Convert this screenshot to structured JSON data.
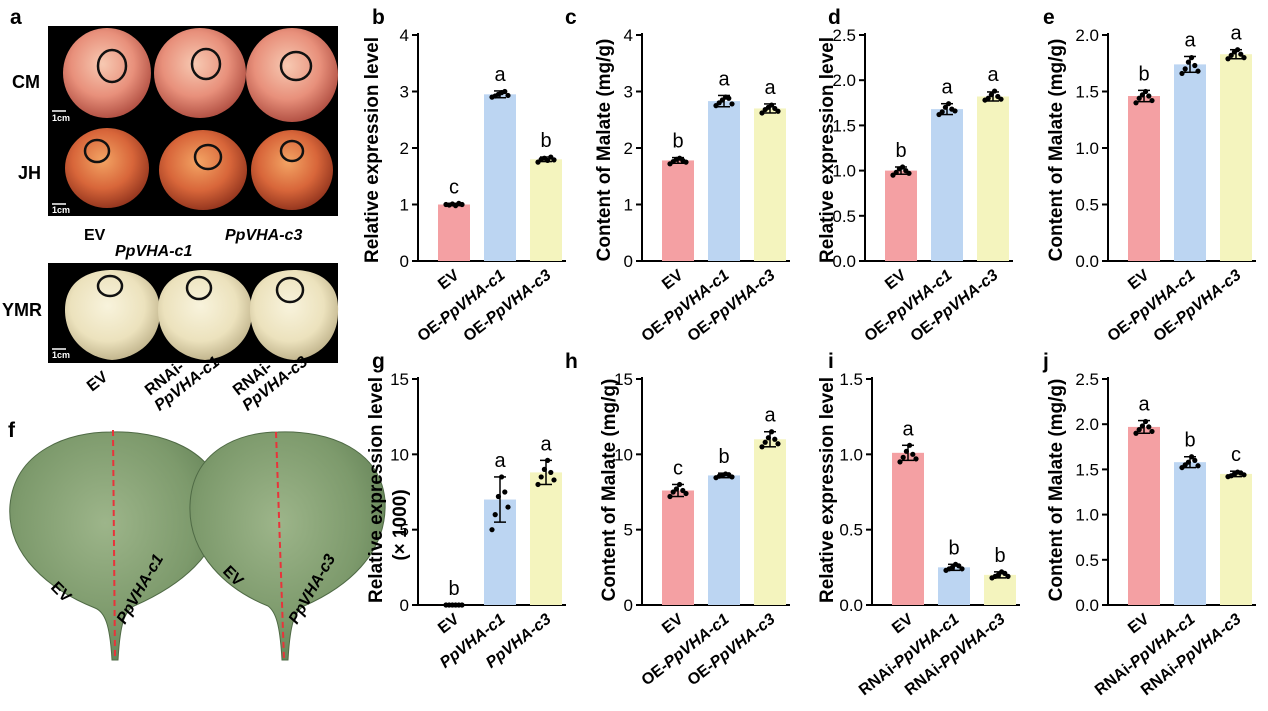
{
  "photos": {
    "panel_a": {
      "label": "a",
      "rows": [
        "CM",
        "JH",
        "YMR"
      ],
      "scale": "1cm",
      "top_categories": [
        {
          "text": "EV",
          "italic": false
        },
        {
          "text": "PpVHA-c1",
          "italic": true
        },
        {
          "text": "PpVHA-c3",
          "italic": true
        }
      ],
      "bottom_categories": [
        {
          "line1": "",
          "line2": "EV"
        },
        {
          "line1": "RNAi-",
          "line2": "PpVHA-c1"
        },
        {
          "line1": "RNAi-",
          "line2": "PpVHA-c3"
        }
      ]
    },
    "panel_f": {
      "label": "f",
      "leaves": [
        {
          "left": "EV",
          "right": "PpVHA-c1"
        },
        {
          "left": "EV",
          "right": "PpVHA-c3"
        }
      ]
    }
  },
  "chart_data": [
    {
      "panel": "b",
      "type": "bar",
      "ylabel": "Relative expression level",
      "ylabel2": "",
      "ylim": [
        0,
        4
      ],
      "yticks": [
        0,
        1,
        2,
        3,
        4
      ],
      "categories": [
        {
          "prefix": "",
          "gene": "",
          "text": "EV"
        },
        {
          "prefix": "OE-",
          "gene": "PpVHA-c1",
          "text": "OE-PpVHA-c1"
        },
        {
          "prefix": "OE-",
          "gene": "PpVHA-c3",
          "text": "OE-PpVHA-c3"
        }
      ],
      "values": [
        1.0,
        2.95,
        1.8
      ],
      "errors": [
        0.02,
        0.06,
        0.04
      ],
      "letters": [
        "c",
        "a",
        "b"
      ],
      "points": [
        [
          1.0,
          0.99,
          1.01,
          0.98,
          1.02,
          1.0
        ],
        [
          2.9,
          2.92,
          2.95,
          2.98,
          3.0,
          2.93
        ],
        [
          1.75,
          1.8,
          1.82,
          1.78,
          1.84,
          1.79
        ]
      ]
    },
    {
      "panel": "c",
      "type": "bar",
      "ylabel": "Content of Malate (mg/g)",
      "ylabel2": "",
      "ylim": [
        0,
        4
      ],
      "yticks": [
        0,
        1,
        2,
        3,
        4
      ],
      "categories": [
        {
          "prefix": "",
          "gene": "",
          "text": "EV"
        },
        {
          "prefix": "OE-",
          "gene": "PpVHA-c1",
          "text": "OE-PpVHA-c1"
        },
        {
          "prefix": "OE-",
          "gene": "PpVHA-c3",
          "text": "OE-PpVHA-c3"
        }
      ],
      "values": [
        1.78,
        2.83,
        2.7
      ],
      "errors": [
        0.05,
        0.1,
        0.08
      ],
      "letters": [
        "b",
        "a",
        "a"
      ],
      "points": [
        [
          1.72,
          1.76,
          1.8,
          1.82,
          1.78,
          1.75
        ],
        [
          2.75,
          2.8,
          2.85,
          2.9,
          2.88,
          2.78
        ],
        [
          2.62,
          2.68,
          2.72,
          2.76,
          2.7,
          2.65
        ]
      ]
    },
    {
      "panel": "d",
      "type": "bar",
      "ylabel": "Relative expression level",
      "ylabel2": "",
      "ylim": [
        0,
        2.5
      ],
      "yticks": [
        0.0,
        0.5,
        1.0,
        1.5,
        2.0,
        2.5
      ],
      "categories": [
        {
          "prefix": "",
          "gene": "",
          "text": "EV"
        },
        {
          "prefix": "OE-",
          "gene": "PpVHA-c1",
          "text": "OE-PpVHA-c1"
        },
        {
          "prefix": "OE-",
          "gene": "PpVHA-c3",
          "text": "OE-PpVHA-c3"
        }
      ],
      "values": [
        1.0,
        1.68,
        1.82
      ],
      "errors": [
        0.04,
        0.06,
        0.05
      ],
      "letters": [
        "b",
        "a",
        "a"
      ],
      "points": [
        [
          0.95,
          0.98,
          1.02,
          1.04,
          1.0,
          0.97
        ],
        [
          1.62,
          1.65,
          1.7,
          1.74,
          1.68,
          1.66
        ],
        [
          1.78,
          1.8,
          1.84,
          1.88,
          1.82,
          1.79
        ]
      ]
    },
    {
      "panel": "e",
      "type": "bar",
      "ylabel": "Content of Malate (mg/g)",
      "ylabel2": "",
      "ylim": [
        0,
        2.0
      ],
      "yticks": [
        0.0,
        0.5,
        1.0,
        1.5,
        2.0
      ],
      "categories": [
        {
          "prefix": "",
          "gene": "",
          "text": "EV"
        },
        {
          "prefix": "OE-",
          "gene": "PpVHA-c1",
          "text": "OE-PpVHA-c1"
        },
        {
          "prefix": "OE-",
          "gene": "PpVHA-c3",
          "text": "OE-PpVHA-c3"
        }
      ],
      "values": [
        1.46,
        1.74,
        1.83
      ],
      "errors": [
        0.05,
        0.07,
        0.04
      ],
      "letters": [
        "b",
        "a",
        "a"
      ],
      "points": [
        [
          1.4,
          1.44,
          1.47,
          1.5,
          1.46,
          1.42
        ],
        [
          1.66,
          1.7,
          1.76,
          1.8,
          1.73,
          1.68
        ],
        [
          1.79,
          1.82,
          1.85,
          1.87,
          1.83,
          1.8
        ]
      ]
    },
    {
      "panel": "g",
      "type": "bar",
      "ylabel": "Relative expression level",
      "ylabel2": "(× 1000)",
      "ylim": [
        0,
        15
      ],
      "yticks": [
        0,
        5,
        10,
        15
      ],
      "categories": [
        {
          "prefix": "",
          "gene": "",
          "text": "EV"
        },
        {
          "prefix": "",
          "gene": "PpVHA-c1",
          "text": "PpVHA-c1"
        },
        {
          "prefix": "",
          "gene": "PpVHA-c3",
          "text": "PpVHA-c3"
        }
      ],
      "values": [
        0.001,
        7.0,
        8.8
      ],
      "errors": [
        0.0,
        1.5,
        0.8
      ],
      "letters": [
        "b",
        "a",
        "a"
      ],
      "points": [
        [
          0,
          0,
          0,
          0,
          0,
          0
        ],
        [
          5.0,
          6.0,
          7.2,
          8.5,
          7.5,
          6.5
        ],
        [
          8.0,
          8.5,
          9.0,
          9.6,
          8.8,
          8.3
        ]
      ]
    },
    {
      "panel": "h",
      "type": "bar",
      "ylabel": "Content of Malate (mg/g)",
      "ylabel2": "",
      "ylim": [
        0,
        15
      ],
      "yticks": [
        0,
        5,
        10,
        15
      ],
      "categories": [
        {
          "prefix": "",
          "gene": "",
          "text": "EV"
        },
        {
          "prefix": "OE-",
          "gene": "PpVHA-c1",
          "text": "OE-PpVHA-c1"
        },
        {
          "prefix": "OE-",
          "gene": "PpVHA-c3",
          "text": "OE-PpVHA-c3"
        }
      ],
      "values": [
        7.6,
        8.6,
        11.0
      ],
      "errors": [
        0.4,
        0.15,
        0.5
      ],
      "letters": [
        "c",
        "b",
        "a"
      ],
      "points": [
        [
          7.2,
          7.5,
          7.7,
          8.0,
          7.6,
          7.4
        ],
        [
          8.45,
          8.55,
          8.6,
          8.7,
          8.65,
          8.5
        ],
        [
          10.5,
          10.8,
          11.1,
          11.5,
          11.0,
          10.7
        ]
      ]
    },
    {
      "panel": "i",
      "type": "bar",
      "ylabel": "Relative expression level",
      "ylabel2": "",
      "ylim": [
        0,
        1.5
      ],
      "yticks": [
        0.0,
        0.5,
        1.0,
        1.5
      ],
      "categories": [
        {
          "prefix": "",
          "gene": "",
          "text": "EV"
        },
        {
          "prefix": "RNAi-",
          "gene": "PpVHA-c1",
          "text": "RNAi-PpVHA-c1"
        },
        {
          "prefix": "RNAi-",
          "gene": "PpVHA-c3",
          "text": "RNAi-PpVHA-c3"
        }
      ],
      "values": [
        1.01,
        0.25,
        0.2
      ],
      "errors": [
        0.05,
        0.02,
        0.02
      ],
      "letters": [
        "a",
        "b",
        "b"
      ],
      "points": [
        [
          0.95,
          0.98,
          1.02,
          1.06,
          1.0,
          0.97
        ],
        [
          0.23,
          0.24,
          0.25,
          0.27,
          0.26,
          0.24
        ],
        [
          0.18,
          0.19,
          0.2,
          0.22,
          0.21,
          0.19
        ]
      ]
    },
    {
      "panel": "j",
      "type": "bar",
      "ylabel": "Content of Malate (mg/g)",
      "ylabel2": "",
      "ylim": [
        0,
        2.5
      ],
      "yticks": [
        0.0,
        0.5,
        1.0,
        1.5,
        2.0,
        2.5
      ],
      "categories": [
        {
          "prefix": "",
          "gene": "",
          "text": "EV"
        },
        {
          "prefix": "RNAi-",
          "gene": "PpVHA-c1",
          "text": "RNAi-PpVHA-c1"
        },
        {
          "prefix": "RNAi-",
          "gene": "PpVHA-c3",
          "text": "RNAi-PpVHA-c3"
        }
      ],
      "values": [
        1.97,
        1.58,
        1.45
      ],
      "errors": [
        0.07,
        0.06,
        0.03
      ],
      "letters": [
        "a",
        "b",
        "c"
      ],
      "points": [
        [
          1.9,
          1.94,
          1.98,
          2.03,
          1.97,
          1.92
        ],
        [
          1.52,
          1.55,
          1.58,
          1.64,
          1.6,
          1.54
        ],
        [
          1.42,
          1.43,
          1.45,
          1.47,
          1.46,
          1.44
        ]
      ]
    }
  ],
  "colors": {
    "bar_ev": "#f4a0a3",
    "bar_c1": "#bcd5f2",
    "bar_c3": "#f4f4be",
    "photo_bg": "#000000",
    "dot": "#000000",
    "leaf_line": "#e8333a"
  }
}
